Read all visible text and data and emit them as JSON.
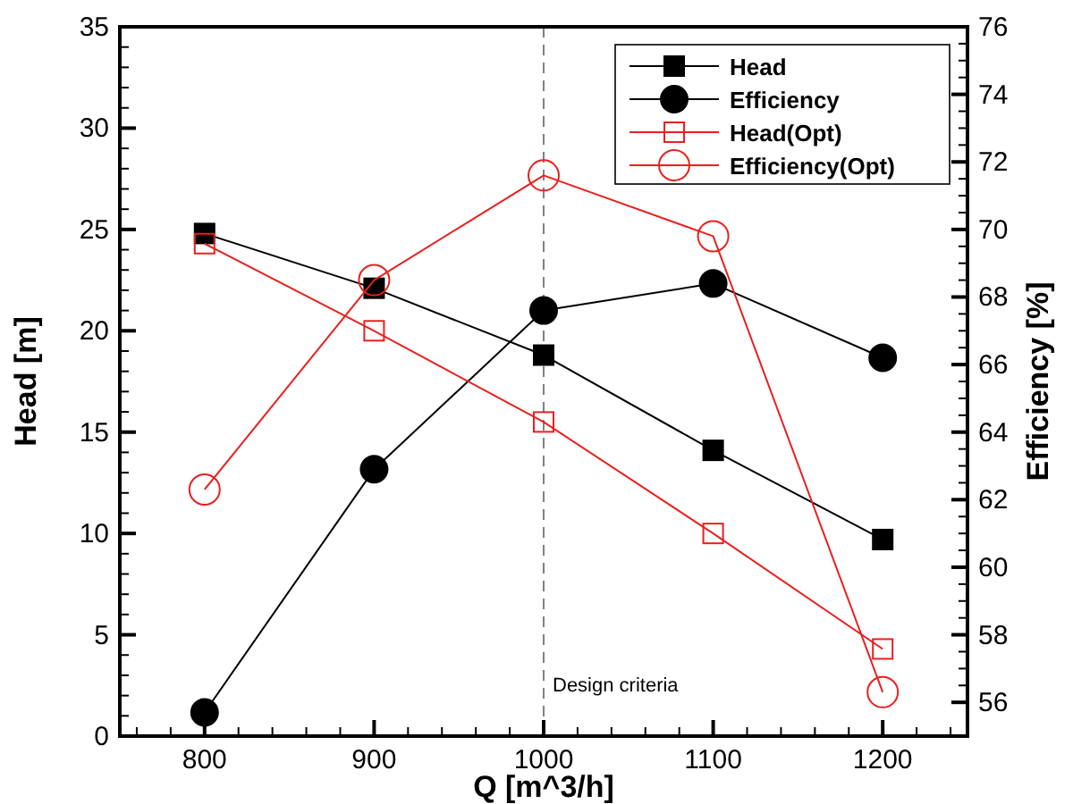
{
  "chart_data": {
    "type": "line",
    "xlabel": "Q [m^3/h]",
    "ylabel": "Head [m]",
    "y2label": "Efficiency [%]",
    "x": [
      800,
      900,
      1000,
      1100,
      1200
    ],
    "xlim": [
      750,
      1250
    ],
    "xticks": [
      800,
      900,
      1000,
      1100,
      1200
    ],
    "ylim": [
      0,
      35
    ],
    "yticks": [
      0,
      5,
      10,
      15,
      20,
      25,
      30,
      35
    ],
    "y2lim": [
      55,
      76
    ],
    "y2ticks": [
      56,
      58,
      60,
      62,
      64,
      66,
      68,
      70,
      72,
      74,
      76
    ],
    "legend": "top right",
    "grid": false,
    "line_style": "solid",
    "ref_lines": [
      {
        "axis": "x",
        "value": 1000,
        "label": "Design criteria",
        "color": "#808080",
        "line_style": "dashed"
      }
    ],
    "series": [
      {
        "name": "Head",
        "color": "#000000",
        "marker": "square",
        "values": [
          24.8,
          22.1,
          18.8,
          14.1,
          9.7
        ]
      },
      {
        "name": "Efficiency",
        "color": "#000000",
        "marker": "circle",
        "axis": "y2",
        "values": [
          55.7,
          62.9,
          67.6,
          68.4,
          66.2
        ]
      },
      {
        "name": "Head(Opt)",
        "color": "#e8201e",
        "marker": "square",
        "values": [
          24.3,
          20.0,
          15.5,
          10.0,
          4.3
        ]
      },
      {
        "name": "Efficiency(Opt)",
        "color": "#e8201e",
        "marker": "circle",
        "axis": "y2",
        "values": [
          62.3,
          68.5,
          71.6,
          69.8,
          56.3
        ]
      }
    ]
  }
}
